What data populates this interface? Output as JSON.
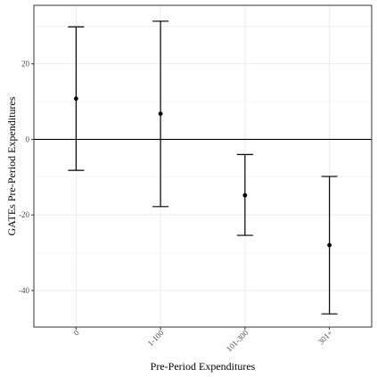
{
  "chart_data": {
    "type": "errorbar",
    "categories": [
      "0",
      "1-100",
      "101-300",
      "301+"
    ],
    "estimates": [
      10.8,
      6.8,
      -14.8,
      -28.0
    ],
    "lower": [
      -8.2,
      -17.8,
      -25.4,
      -46.2
    ],
    "upper": [
      29.8,
      31.3,
      -4.0,
      -9.8
    ],
    "xlabel": "Pre-Period Expenditures",
    "ylabel": "GATEs Pre-Period Expenditures",
    "ylim": [
      -49.7,
      35.5
    ],
    "yticks": [
      20,
      0,
      -20,
      -40
    ],
    "reference_line_y": 0,
    "grid": true
  }
}
